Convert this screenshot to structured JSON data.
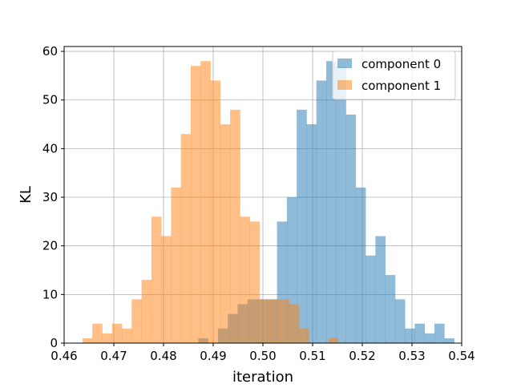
{
  "chart_data": {
    "type": "bar",
    "title": "",
    "xlabel": "iteration",
    "ylabel": "KL",
    "xlim": [
      0.46,
      0.54
    ],
    "ylim": [
      0,
      61
    ],
    "xticks": [
      "0.46",
      "0.47",
      "0.48",
      "0.49",
      "0.50",
      "0.51",
      "0.52",
      "0.53",
      "0.54"
    ],
    "yticks": [
      "0",
      "10",
      "20",
      "30",
      "40",
      "50",
      "60"
    ],
    "grid": true,
    "legend_position": "top-right",
    "series": [
      {
        "name": "component 0",
        "color": "#1f77b4",
        "opacity": 0.5,
        "bin_start": 0.487,
        "bin_width": 0.00198,
        "counts": [
          1,
          0,
          3,
          6,
          8,
          9,
          9,
          9,
          25,
          30,
          48,
          45,
          54,
          58,
          57,
          47,
          32,
          18,
          22,
          14,
          9,
          3,
          4,
          2,
          4,
          1
        ]
      },
      {
        "name": "component 1",
        "color": "#ff7f0e",
        "opacity": 0.5,
        "bin_start": 0.4637,
        "bin_width": 0.00198,
        "counts": [
          1,
          4,
          2,
          4,
          3,
          9,
          13,
          26,
          22,
          32,
          43,
          57,
          58,
          54,
          45,
          48,
          26,
          25,
          9,
          9,
          9,
          8,
          3,
          0,
          0,
          1
        ]
      }
    ]
  }
}
